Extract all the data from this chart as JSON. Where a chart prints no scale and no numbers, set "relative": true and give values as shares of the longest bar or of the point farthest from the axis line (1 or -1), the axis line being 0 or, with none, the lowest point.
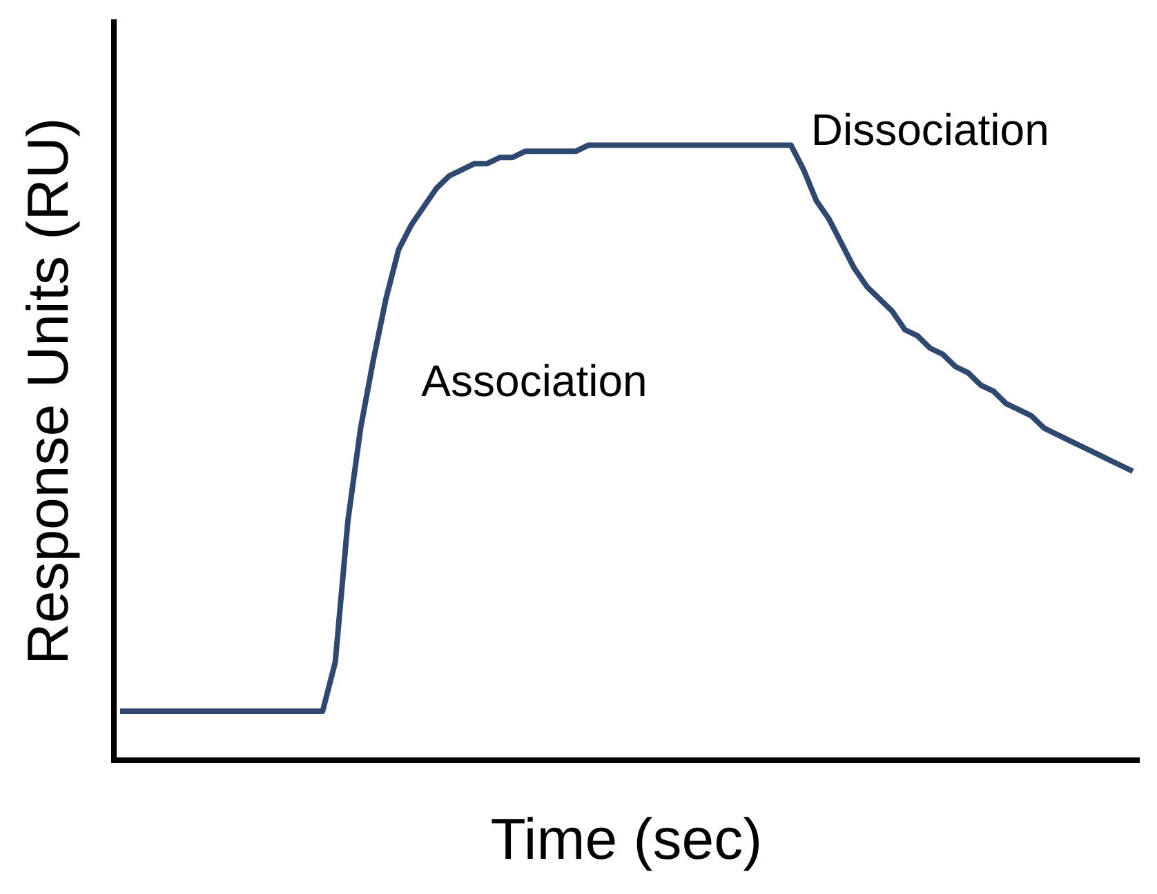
{
  "chart_data": {
    "type": "line",
    "relative": true,
    "xlabel": "Time (sec)",
    "ylabel": "Response Units (RU)",
    "annotations": [
      "Association",
      "Dissociation"
    ],
    "marker": "none",
    "categories": [
      null,
      null,
      null,
      null,
      null,
      null,
      null,
      null,
      null,
      null,
      null,
      null,
      null,
      null,
      null,
      null,
      null,
      null,
      null,
      null,
      null,
      null,
      null,
      null,
      null,
      null,
      null,
      null,
      null,
      null,
      null,
      null,
      null,
      null,
      null,
      null,
      null,
      null,
      null,
      null,
      null,
      null,
      null,
      null,
      null,
      null,
      null,
      null,
      null,
      null,
      null,
      null,
      null,
      null,
      null,
      null,
      null,
      null,
      null,
      null,
      null,
      null,
      null,
      null,
      null,
      null,
      null,
      null,
      null,
      null,
      null,
      null,
      null,
      null,
      null,
      null,
      null,
      null,
      null,
      null,
      null
    ],
    "series": [
      {
        "color": "#2f4870",
        "values": [
          0.08,
          0.08,
          0.08,
          0.08,
          0.08,
          0.08,
          0.08,
          0.08,
          0.08,
          0.08,
          0.08,
          0.08,
          0.08,
          0.08,
          0.08,
          0.08,
          0.08,
          0.16,
          0.39,
          0.54,
          0.65,
          0.75,
          0.83,
          0.87,
          0.9,
          0.93,
          0.95,
          0.96,
          0.97,
          0.97,
          0.98,
          0.98,
          0.99,
          0.99,
          0.99,
          0.99,
          0.99,
          1,
          1,
          1,
          1,
          1,
          1,
          1,
          1,
          1,
          1,
          1,
          1,
          1,
          1,
          1,
          1,
          1,
          0.96,
          0.91,
          0.88,
          0.84,
          0.8,
          0.77,
          0.75,
          0.73,
          0.7,
          0.69,
          0.67,
          0.66,
          0.64,
          0.63,
          0.61,
          0.6,
          0.58,
          0.57,
          0.56,
          0.54,
          0.53,
          0.52,
          0.51,
          0.5,
          0.49,
          0.48,
          0.47
        ]
      }
    ]
  }
}
